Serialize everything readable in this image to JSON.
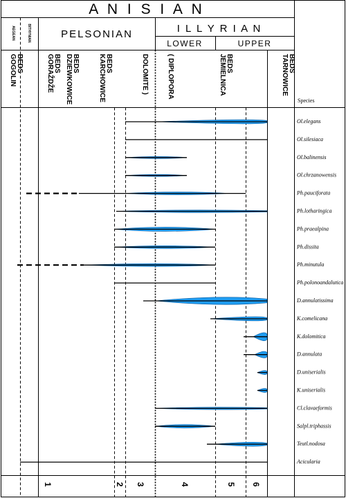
{
  "header": {
    "stage": "A N I S I A N",
    "substages": {
      "aegean": "AEGEAN",
      "bithynian": "BITHYNIAN",
      "pelsonian": "PELSONIAN",
      "illyrian": "I L L Y R I A N"
    },
    "subdivisions": {
      "lower": "LOWER",
      "upper": "UPPER"
    }
  },
  "formations": [
    {
      "key": "gogolin",
      "line1": "GOGOLIN",
      "line2": "BEDS"
    },
    {
      "key": "gorazdze",
      "line1": "GORAŽDŽE",
      "line2": "BEDS"
    },
    {
      "key": "dziewkowice",
      "line1": "DZIEWKOWICE",
      "line2": "BEDS"
    },
    {
      "key": "karchowice",
      "line1": "KARCHOWICE",
      "line2": "BEDS"
    },
    {
      "key": "dolomite",
      "line1": "DOLOMITE )",
      "line2": ""
    },
    {
      "key": "diplopora",
      "line1": "( DIPLOPORA",
      "line2": ""
    },
    {
      "key": "jemielnica",
      "line1": "JEMIELNICA",
      "line2": "BEDS"
    },
    {
      "key": "tarnowice",
      "line1": "TARNOWICE",
      "line2": "BEDS"
    }
  ],
  "species_header": "Species",
  "zones": [
    "1",
    "2",
    "3",
    "4",
    "5",
    "6"
  ],
  "species": [
    {
      "name": "Ol.elegans"
    },
    {
      "name": "Ol.silesiaca"
    },
    {
      "name": "Ol.balinensis"
    },
    {
      "name": "Ol.chrzanowensis"
    },
    {
      "name": "Ph.pauciforata"
    },
    {
      "name": "Ph.lotharingica"
    },
    {
      "name": "Ph.praealpina"
    },
    {
      "name": "Ph.dissita"
    },
    {
      "name": "Ph.minutula"
    },
    {
      "name": "Ph.polonoandalutica"
    },
    {
      "name": "D.annulatissima"
    },
    {
      "name": "K.comelicana"
    },
    {
      "name": "K.dolomitica"
    },
    {
      "name": "D.annulata"
    },
    {
      "name": "D.uniserialis"
    },
    {
      "name": "K.uniserialis"
    },
    {
      "name": "Cl.clavaeformis"
    },
    {
      "name": "Salpl.triphassis"
    },
    {
      "name": "Teutl.nodosa"
    },
    {
      "name": "Acicularia"
    }
  ],
  "colors": {
    "lens": "#1f9cf0",
    "lens_stroke": "#0b5fa5",
    "line": "#000000"
  }
}
